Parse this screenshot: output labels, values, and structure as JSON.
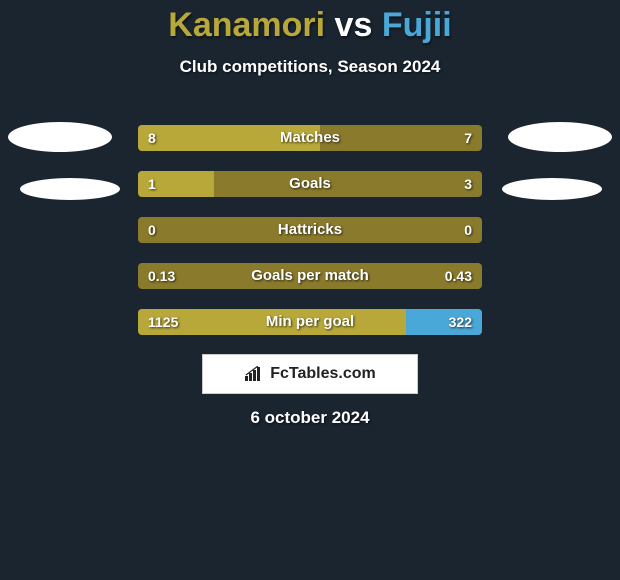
{
  "background_color": "#1a2530",
  "title": {
    "player1": "Kanamori",
    "vs": "vs",
    "player2": "Fujii",
    "color1": "#b8a83a",
    "color_vs": "#ffffff",
    "color2": "#4aa8d8"
  },
  "subtitle": {
    "text": "Club competitions, Season 2024",
    "color": "#ffffff"
  },
  "avatars": {
    "bg_color": "#ffffff"
  },
  "bars": {
    "track_color": "#8a7a2c",
    "fill_left_color": "#b8a83a",
    "fill_right_color": "#4aa8d8",
    "rows": [
      {
        "label": "Matches",
        "left_val": "8",
        "right_val": "7",
        "left_pct": 53,
        "right_pct": 0
      },
      {
        "label": "Goals",
        "left_val": "1",
        "right_val": "3",
        "left_pct": 22,
        "right_pct": 0
      },
      {
        "label": "Hattricks",
        "left_val": "0",
        "right_val": "0",
        "left_pct": 0,
        "right_pct": 0
      },
      {
        "label": "Goals per match",
        "left_val": "0.13",
        "right_val": "0.43",
        "left_pct": 0,
        "right_pct": 0
      },
      {
        "label": "Min per goal",
        "left_val": "1125",
        "right_val": "322",
        "left_pct": 78,
        "right_pct": 22
      }
    ]
  },
  "brand": {
    "text": "FcTables.com",
    "bg_color": "#ffffff",
    "text_color": "#222222"
  },
  "date": {
    "text": "6 october 2024",
    "color": "#ffffff"
  }
}
